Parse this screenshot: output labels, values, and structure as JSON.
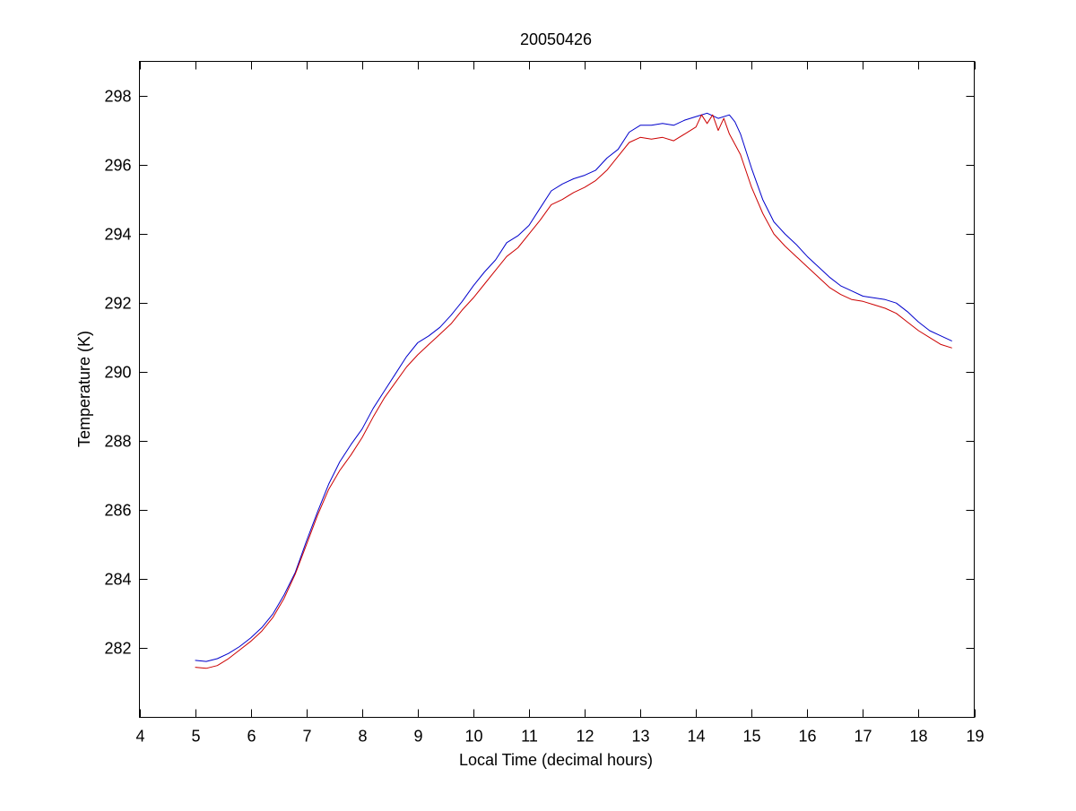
{
  "chart_data": {
    "type": "line",
    "title": "20050426",
    "xlabel": "Local Time (decimal hours)",
    "ylabel": "Temperature (K)",
    "xlim": [
      4,
      19
    ],
    "ylim": [
      280,
      299
    ],
    "xticks": [
      4,
      5,
      6,
      7,
      8,
      9,
      10,
      11,
      12,
      13,
      14,
      15,
      16,
      17,
      18,
      19
    ],
    "yticks": [
      282,
      284,
      286,
      288,
      290,
      292,
      294,
      296,
      298
    ],
    "grid": false,
    "legend": "none",
    "series": [
      {
        "color": "#0000cc",
        "points": [
          [
            5.0,
            281.65
          ],
          [
            5.2,
            281.62
          ],
          [
            5.4,
            281.7
          ],
          [
            5.6,
            281.85
          ],
          [
            5.8,
            282.05
          ],
          [
            6.0,
            282.3
          ],
          [
            6.2,
            282.6
          ],
          [
            6.4,
            283.0
          ],
          [
            6.6,
            283.55
          ],
          [
            6.8,
            284.2
          ],
          [
            7.0,
            285.1
          ],
          [
            7.2,
            285.95
          ],
          [
            7.4,
            286.75
          ],
          [
            7.6,
            287.4
          ],
          [
            7.8,
            287.9
          ],
          [
            8.0,
            288.35
          ],
          [
            8.2,
            288.95
          ],
          [
            8.4,
            289.45
          ],
          [
            8.6,
            289.95
          ],
          [
            8.8,
            290.45
          ],
          [
            9.0,
            290.85
          ],
          [
            9.2,
            291.05
          ],
          [
            9.4,
            291.3
          ],
          [
            9.6,
            291.65
          ],
          [
            9.8,
            292.05
          ],
          [
            10.0,
            292.5
          ],
          [
            10.2,
            292.9
          ],
          [
            10.4,
            293.25
          ],
          [
            10.6,
            293.75
          ],
          [
            10.8,
            293.95
          ],
          [
            11.0,
            294.25
          ],
          [
            11.2,
            294.75
          ],
          [
            11.4,
            295.25
          ],
          [
            11.6,
            295.45
          ],
          [
            11.8,
            295.6
          ],
          [
            12.0,
            295.7
          ],
          [
            12.2,
            295.85
          ],
          [
            12.4,
            296.2
          ],
          [
            12.6,
            296.45
          ],
          [
            12.8,
            296.95
          ],
          [
            13.0,
            297.15
          ],
          [
            13.2,
            297.15
          ],
          [
            13.4,
            297.2
          ],
          [
            13.6,
            297.15
          ],
          [
            13.8,
            297.3
          ],
          [
            14.0,
            297.4
          ],
          [
            14.2,
            297.5
          ],
          [
            14.4,
            297.35
          ],
          [
            14.6,
            297.45
          ],
          [
            14.7,
            297.25
          ],
          [
            14.8,
            296.9
          ],
          [
            15.0,
            295.9
          ],
          [
            15.2,
            295.0
          ],
          [
            15.4,
            294.35
          ],
          [
            15.6,
            294.0
          ],
          [
            15.8,
            293.7
          ],
          [
            16.0,
            293.35
          ],
          [
            16.2,
            293.05
          ],
          [
            16.4,
            292.75
          ],
          [
            16.6,
            292.5
          ],
          [
            16.8,
            292.35
          ],
          [
            17.0,
            292.2
          ],
          [
            17.2,
            292.15
          ],
          [
            17.4,
            292.1
          ],
          [
            17.6,
            292.0
          ],
          [
            17.8,
            291.75
          ],
          [
            18.0,
            291.45
          ],
          [
            18.2,
            291.2
          ],
          [
            18.4,
            291.05
          ],
          [
            18.6,
            290.9
          ]
        ]
      },
      {
        "color": "#cc0000",
        "points": [
          [
            5.0,
            281.45
          ],
          [
            5.2,
            281.42
          ],
          [
            5.4,
            281.5
          ],
          [
            5.6,
            281.7
          ],
          [
            5.8,
            281.95
          ],
          [
            6.0,
            282.2
          ],
          [
            6.2,
            282.5
          ],
          [
            6.4,
            282.9
          ],
          [
            6.6,
            283.45
          ],
          [
            6.8,
            284.15
          ],
          [
            7.0,
            285.0
          ],
          [
            7.2,
            285.85
          ],
          [
            7.4,
            286.6
          ],
          [
            7.6,
            287.15
          ],
          [
            7.8,
            287.6
          ],
          [
            8.0,
            288.1
          ],
          [
            8.2,
            288.7
          ],
          [
            8.4,
            289.25
          ],
          [
            8.6,
            289.7
          ],
          [
            8.8,
            290.15
          ],
          [
            9.0,
            290.5
          ],
          [
            9.2,
            290.8
          ],
          [
            9.4,
            291.1
          ],
          [
            9.6,
            291.4
          ],
          [
            9.8,
            291.8
          ],
          [
            10.0,
            292.15
          ],
          [
            10.2,
            292.55
          ],
          [
            10.4,
            292.95
          ],
          [
            10.6,
            293.35
          ],
          [
            10.8,
            293.6
          ],
          [
            11.0,
            294.0
          ],
          [
            11.2,
            294.4
          ],
          [
            11.4,
            294.85
          ],
          [
            11.6,
            295.0
          ],
          [
            11.8,
            295.2
          ],
          [
            12.0,
            295.35
          ],
          [
            12.2,
            295.55
          ],
          [
            12.4,
            295.85
          ],
          [
            12.6,
            296.25
          ],
          [
            12.8,
            296.65
          ],
          [
            13.0,
            296.8
          ],
          [
            13.2,
            296.75
          ],
          [
            13.4,
            296.8
          ],
          [
            13.6,
            296.7
          ],
          [
            13.8,
            296.9
          ],
          [
            14.0,
            297.1
          ],
          [
            14.1,
            297.45
          ],
          [
            14.2,
            297.2
          ],
          [
            14.3,
            297.45
          ],
          [
            14.4,
            297.0
          ],
          [
            14.5,
            297.35
          ],
          [
            14.6,
            296.9
          ],
          [
            14.8,
            296.3
          ],
          [
            15.0,
            295.35
          ],
          [
            15.2,
            294.6
          ],
          [
            15.4,
            294.0
          ],
          [
            15.6,
            293.65
          ],
          [
            15.8,
            293.35
          ],
          [
            16.0,
            293.05
          ],
          [
            16.2,
            292.75
          ],
          [
            16.4,
            292.45
          ],
          [
            16.6,
            292.25
          ],
          [
            16.8,
            292.1
          ],
          [
            17.0,
            292.05
          ],
          [
            17.2,
            291.95
          ],
          [
            17.4,
            291.85
          ],
          [
            17.6,
            291.7
          ],
          [
            17.8,
            291.45
          ],
          [
            18.0,
            291.2
          ],
          [
            18.2,
            291.0
          ],
          [
            18.4,
            290.8
          ],
          [
            18.6,
            290.7
          ]
        ]
      }
    ]
  }
}
